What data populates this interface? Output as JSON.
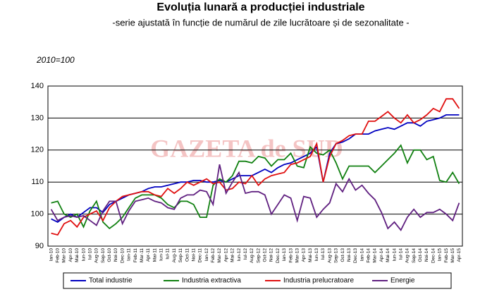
{
  "chart_data": {
    "type": "line",
    "title": "Evoluția lunară a producției industriale",
    "subtitle": "-serie ajustată în funcție de numărul de zile lucrătoare și de sezonalitate -",
    "annotation": "2010=100",
    "watermark": "GAZETA de SUD",
    "categories": [
      "Ian-10",
      "Feb-10",
      "Mar-10",
      "Apr-10",
      "Mai-10",
      "Iun-10",
      "Iul-10",
      "Aug-10",
      "Sep-10",
      "Oct-10",
      "Noi-10",
      "Dec-10",
      "Ian-11",
      "Feb-11",
      "Mar-11",
      "Apr-11",
      "Mai-11",
      "Iun-11",
      "Iul-11",
      "Aug-11",
      "Sep-11",
      "Oct-11",
      "Noi-11",
      "Dec-11",
      "Ian-12",
      "Feb-12",
      "Mar-12",
      "Apr-12",
      "Mai-12",
      "Iun-12",
      "Iul-12",
      "Aug-12",
      "Sep-12",
      "Oct-12",
      "Noi-12",
      "Dec-12",
      "Ian-13",
      "Feb-13",
      "Mar-13",
      "Apr-13",
      "Mai-13",
      "Iun-13",
      "Iul-13",
      "Aug-13",
      "Sep-13",
      "Oct-13",
      "Noi-13",
      "Dec-13",
      "Ian-14",
      "Feb-14",
      "Mar-14",
      "Apr-14",
      "Mai-14",
      "Iun-14",
      "Iul-14",
      "Aug-14",
      "Sep-14",
      "Oct-14",
      "Noi-14",
      "Dec-14",
      "Ian-15",
      "Feb-15",
      "Mar-15",
      "Apr-15"
    ],
    "series": [
      {
        "name": "Total industrie",
        "color": "#0000c0",
        "values": [
          98.5,
          97.5,
          99,
          100,
          99,
          100.5,
          102,
          102,
          100.5,
          103,
          104,
          105,
          106,
          106.5,
          107,
          108,
          108.5,
          108.5,
          109,
          109.5,
          110,
          110,
          110.5,
          110.5,
          110,
          110,
          110.5,
          110,
          111,
          112,
          112,
          112,
          113,
          114,
          113,
          114.5,
          115.5,
          116,
          117,
          118,
          119,
          121,
          110,
          119,
          122,
          122.5,
          123.5,
          125,
          125,
          125,
          126,
          126.5,
          127,
          126.5,
          127.5,
          128.5,
          128.5,
          127.5,
          129,
          129.5,
          130,
          131,
          131,
          131
        ]
      },
      {
        "name": "Industria extractiva",
        "color": "#108010",
        "values": [
          103.5,
          104,
          100,
          99,
          100,
          96,
          101,
          104,
          97.5,
          95.5,
          97,
          99,
          102,
          105,
          106,
          106,
          106,
          105,
          103,
          102,
          104,
          104,
          103,
          99,
          99,
          109,
          111,
          110,
          112,
          116.5,
          116.5,
          116,
          118,
          117.5,
          115,
          117,
          117,
          119,
          115,
          114.5,
          121,
          119,
          118.5,
          120,
          116,
          111,
          115,
          115,
          115,
          115,
          113,
          115,
          117,
          119,
          121.5,
          116,
          120,
          120,
          117,
          118,
          110.5,
          110,
          113,
          109.5
        ]
      },
      {
        "name": "Industria prelucratoare",
        "color": "#e01010",
        "values": [
          94,
          93.5,
          97,
          98,
          96,
          99,
          100,
          101,
          98,
          102,
          104,
          105.5,
          106,
          106.5,
          107,
          107,
          106,
          105.5,
          108,
          106.5,
          108,
          110,
          109,
          110,
          111,
          109.5,
          110,
          107.5,
          108,
          110,
          109.5,
          112,
          109,
          111,
          112,
          112.5,
          113,
          115.5,
          116,
          117,
          118,
          122,
          110,
          118,
          122,
          123,
          124.5,
          125,
          125,
          129,
          129,
          130.5,
          132,
          130,
          128.5,
          131,
          128.5,
          129.5,
          131,
          133,
          132,
          136,
          136,
          133
        ]
      },
      {
        "name": "Energie",
        "color": "#602080",
        "values": [
          101.5,
          98,
          99,
          99.5,
          99,
          99.5,
          98,
          96.5,
          101,
          104,
          104,
          97,
          101,
          104,
          104.5,
          105,
          104,
          103.5,
          102,
          101.5,
          105,
          106,
          106,
          107.5,
          107,
          103,
          115.5,
          106.5,
          110,
          113,
          106.5,
          107,
          107,
          106,
          100,
          103,
          106,
          105,
          98,
          105.5,
          105,
          99,
          101.5,
          103.5,
          109.5,
          107,
          111,
          107.5,
          109,
          106.5,
          104.5,
          100.5,
          95.5,
          97.5,
          95,
          99,
          101.5,
          99,
          100.5,
          100.5,
          101.5,
          100,
          98,
          103.5
        ]
      }
    ],
    "ylim": [
      90,
      140
    ],
    "yticks": [
      90,
      100,
      110,
      120,
      130,
      140
    ],
    "grid": true,
    "legend": "bottom"
  }
}
